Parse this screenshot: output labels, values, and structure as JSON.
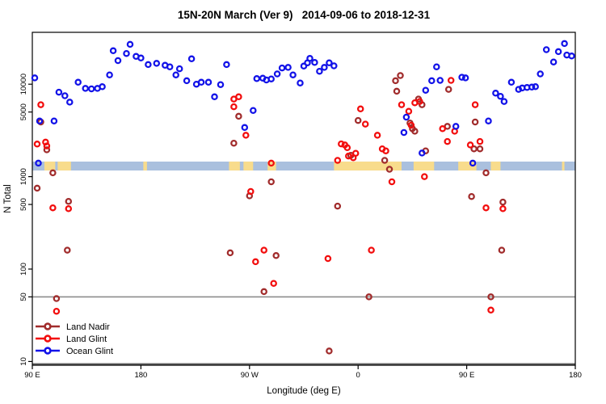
{
  "title": "15N-20N March (Ver 9)   2014-09-06 to 2018-12-31",
  "axes": {
    "x_label": "Longitude (deg E)",
    "y_label": "N Total"
  },
  "legend": {
    "items": [
      {
        "label": "Land Nadir",
        "color": "#A12C2C"
      },
      {
        "label": "Land Glint",
        "color": "#F20D0D"
      },
      {
        "label": "Ocean Glint",
        "color": "#1212E8"
      }
    ]
  },
  "map_band": {
    "description": "land-ocean strip map for 15N-20N drawn across plot",
    "ocean_color": "#AAC0DE",
    "land_color": "#F8DC8C",
    "value_range": [
      1165,
      1455
    ],
    "land_segments_lon": [
      [
        100,
        109
      ],
      [
        111,
        122
      ],
      [
        182,
        185
      ],
      [
        253,
        262
      ],
      [
        265,
        273
      ],
      [
        285,
        292
      ],
      [
        340,
        396
      ],
      [
        406,
        423
      ],
      [
        443,
        458
      ],
      [
        470,
        478
      ],
      [
        529,
        531
      ]
    ]
  },
  "chart_data": {
    "type": "scatter",
    "title": "15N-20N March (Ver 9)   2014-09-06 to 2018-12-31",
    "xlabel": "Longitude (deg E)",
    "ylabel": "N Total",
    "x_axis": {
      "range_deg_continuous": [
        90,
        540
      ],
      "ticks": [
        {
          "lon": 90,
          "label": "90 E"
        },
        {
          "lon": 180,
          "label": "180"
        },
        {
          "lon": 270,
          "label": "90 W"
        },
        {
          "lon": 360,
          "label": "0"
        },
        {
          "lon": 450,
          "label": "90 E"
        },
        {
          "lon": 540,
          "label": "180"
        }
      ]
    },
    "y_axis": {
      "scale": "log",
      "range": [
        9,
        36000
      ],
      "ticks": [
        10,
        50,
        100,
        500,
        1000,
        5000,
        10000
      ]
    },
    "reference_line_y": 50,
    "reference_line_color": "#8C8C8C",
    "bottom_rule_color": "#666666",
    "legend_position": "bottom-left",
    "grid": false,
    "series": [
      {
        "name": "Land Nadir",
        "color": "#A12C2C",
        "points": [
          [
            97,
            3900
          ],
          [
            102,
            1950
          ],
          [
            107,
            1100
          ],
          [
            94,
            750
          ],
          [
            110,
            48
          ],
          [
            119,
            160
          ],
          [
            120,
            540
          ],
          [
            254,
            150
          ],
          [
            257,
            2300
          ],
          [
            261,
            4500
          ],
          [
            270,
            620
          ],
          [
            282,
            57
          ],
          [
            288,
            880
          ],
          [
            292,
            140
          ],
          [
            336,
            13
          ],
          [
            343,
            480
          ],
          [
            354,
            1700
          ],
          [
            360,
            4050
          ],
          [
            369,
            50
          ],
          [
            382,
            1500
          ],
          [
            386,
            1200
          ],
          [
            391,
            10900
          ],
          [
            392,
            8400
          ],
          [
            395,
            12400
          ],
          [
            403,
            3800
          ],
          [
            405,
            3300
          ],
          [
            407,
            3100
          ],
          [
            410,
            6900
          ],
          [
            413,
            6000
          ],
          [
            416,
            1900
          ],
          [
            434,
            3500
          ],
          [
            435,
            8800
          ],
          [
            454,
            610
          ],
          [
            456,
            2000
          ],
          [
            457,
            3900
          ],
          [
            461,
            2000
          ],
          [
            466,
            1100
          ],
          [
            470,
            50
          ],
          [
            479,
            160
          ],
          [
            480,
            530
          ]
        ]
      },
      {
        "name": "Land Glint",
        "color": "#F20D0D",
        "points": [
          [
            97,
            6000
          ],
          [
            94,
            2250
          ],
          [
            101,
            2360
          ],
          [
            102,
            2150
          ],
          [
            107,
            460
          ],
          [
            120,
            450
          ],
          [
            110,
            35
          ],
          [
            257,
            6900
          ],
          [
            261,
            7300
          ],
          [
            257,
            5700
          ],
          [
            267,
            2800
          ],
          [
            271,
            690
          ],
          [
            275,
            120
          ],
          [
            282,
            160
          ],
          [
            288,
            1400
          ],
          [
            290,
            70
          ],
          [
            335,
            130
          ],
          [
            343,
            1500
          ],
          [
            346,
            2260
          ],
          [
            349,
            2200
          ],
          [
            351,
            2060
          ],
          [
            352,
            1670
          ],
          [
            356,
            1600
          ],
          [
            358,
            1790
          ],
          [
            362,
            5400
          ],
          [
            366,
            3700
          ],
          [
            371,
            160
          ],
          [
            376,
            2800
          ],
          [
            380,
            2000
          ],
          [
            383,
            1900
          ],
          [
            388,
            880
          ],
          [
            396,
            6000
          ],
          [
            402,
            5100
          ],
          [
            404,
            3600
          ],
          [
            407,
            6300
          ],
          [
            411,
            6500
          ],
          [
            415,
            1000
          ],
          [
            430,
            3300
          ],
          [
            434,
            2400
          ],
          [
            437,
            11000
          ],
          [
            440,
            3100
          ],
          [
            453,
            2200
          ],
          [
            457,
            6000
          ],
          [
            461,
            2400
          ],
          [
            466,
            460
          ],
          [
            470,
            36
          ],
          [
            480,
            450
          ]
        ]
      },
      {
        "name": "Ocean Glint",
        "color": "#1212E8",
        "points": [
          [
            92,
            11700
          ],
          [
            96,
            4000
          ],
          [
            108,
            4000
          ],
          [
            95,
            1400
          ],
          [
            112,
            8200
          ],
          [
            117,
            7500
          ],
          [
            121,
            6400
          ],
          [
            128,
            10500
          ],
          [
            134,
            9000
          ],
          [
            139,
            8900
          ],
          [
            144,
            9000
          ],
          [
            148,
            9400
          ],
          [
            154,
            12600
          ],
          [
            157,
            23000
          ],
          [
            161,
            18000
          ],
          [
            168,
            21500
          ],
          [
            171,
            27000
          ],
          [
            176,
            20000
          ],
          [
            180,
            19200
          ],
          [
            186,
            16300
          ],
          [
            193,
            16800
          ],
          [
            200,
            16000
          ],
          [
            204,
            15400
          ],
          [
            212,
            14700
          ],
          [
            209,
            12600
          ],
          [
            218,
            10900
          ],
          [
            222,
            18800
          ],
          [
            226,
            10000
          ],
          [
            230,
            10500
          ],
          [
            236,
            10500
          ],
          [
            241,
            7300
          ],
          [
            246,
            9900
          ],
          [
            251,
            16300
          ],
          [
            266,
            3400
          ],
          [
            273,
            5200
          ],
          [
            276,
            11500
          ],
          [
            281,
            11600
          ],
          [
            284,
            11100
          ],
          [
            288,
            11400
          ],
          [
            293,
            12900
          ],
          [
            297,
            15000
          ],
          [
            302,
            15200
          ],
          [
            306,
            12600
          ],
          [
            312,
            10300
          ],
          [
            315,
            15700
          ],
          [
            318,
            17000
          ],
          [
            320,
            19000
          ],
          [
            324,
            17200
          ],
          [
            328,
            13800
          ],
          [
            332,
            15200
          ],
          [
            336,
            17000
          ],
          [
            340,
            15800
          ],
          [
            398,
            3000
          ],
          [
            400,
            4400
          ],
          [
            413,
            1800
          ],
          [
            416,
            8600
          ],
          [
            421,
            10900
          ],
          [
            425,
            15400
          ],
          [
            428,
            11000
          ],
          [
            441,
            3500
          ],
          [
            446,
            11900
          ],
          [
            449,
            11700
          ],
          [
            455,
            1400
          ],
          [
            468,
            4000
          ],
          [
            474,
            8000
          ],
          [
            478,
            7400
          ],
          [
            481,
            6500
          ],
          [
            487,
            10500
          ],
          [
            493,
            8800
          ],
          [
            496,
            9100
          ],
          [
            500,
            9200
          ],
          [
            504,
            9300
          ],
          [
            507,
            9400
          ],
          [
            511,
            12900
          ],
          [
            516,
            23600
          ],
          [
            522,
            17400
          ],
          [
            526,
            22500
          ],
          [
            531,
            27500
          ],
          [
            533,
            20700
          ],
          [
            537,
            20200
          ]
        ]
      }
    ]
  }
}
